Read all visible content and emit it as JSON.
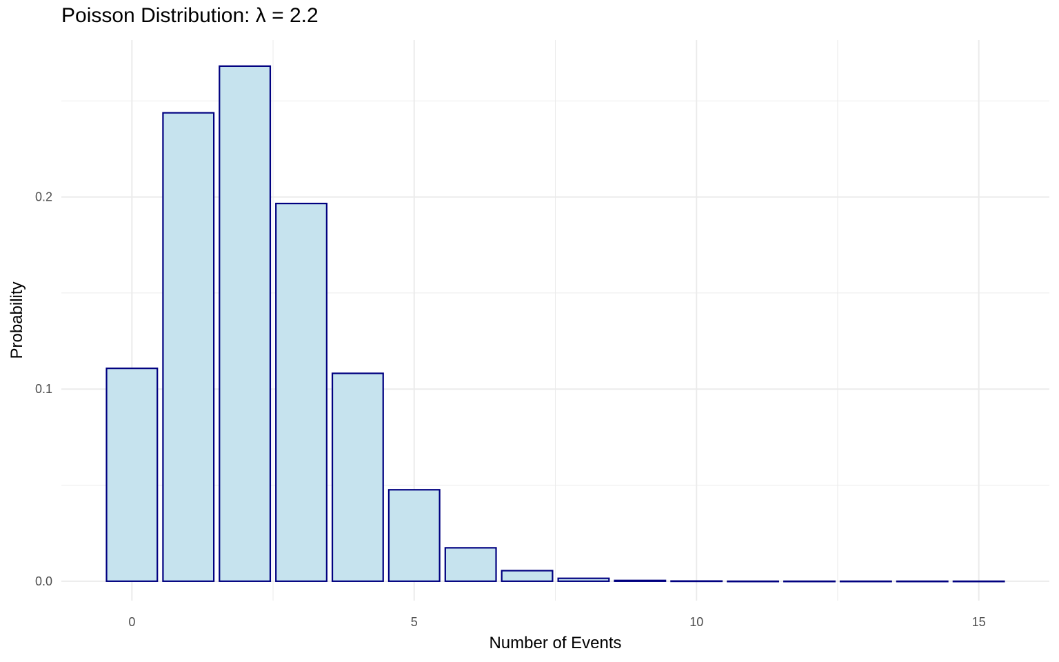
{
  "chart_data": {
    "type": "bar",
    "title": "Poisson Distribution: λ = 2.2",
    "xlabel": "Number of Events",
    "ylabel": "Probability",
    "x": [
      0,
      1,
      2,
      3,
      4,
      5,
      6,
      7,
      8,
      9,
      10,
      11,
      12,
      13,
      14,
      15
    ],
    "values": [
      0.1108,
      0.2438,
      0.2681,
      0.1966,
      0.1082,
      0.0476,
      0.0174,
      0.0055,
      0.0015,
      0.0004,
      0.0001,
      0.0,
      0.0,
      0.0,
      0.0,
      0.0
    ],
    "x_ticks": [
      0,
      5,
      10,
      15
    ],
    "x_tick_labels": [
      "0",
      "5",
      "10",
      "15"
    ],
    "y_ticks": [
      0.0,
      0.1,
      0.2
    ],
    "y_tick_labels": [
      "0.0",
      "0.1",
      "0.2"
    ],
    "xlim": [
      -1.25,
      16.25
    ],
    "ylim": [
      -0.0101,
      0.2817
    ],
    "grid": true,
    "bar_fill": "#c6e3ee",
    "bar_stroke": "#000080",
    "grid_color": "#ebebeb"
  }
}
